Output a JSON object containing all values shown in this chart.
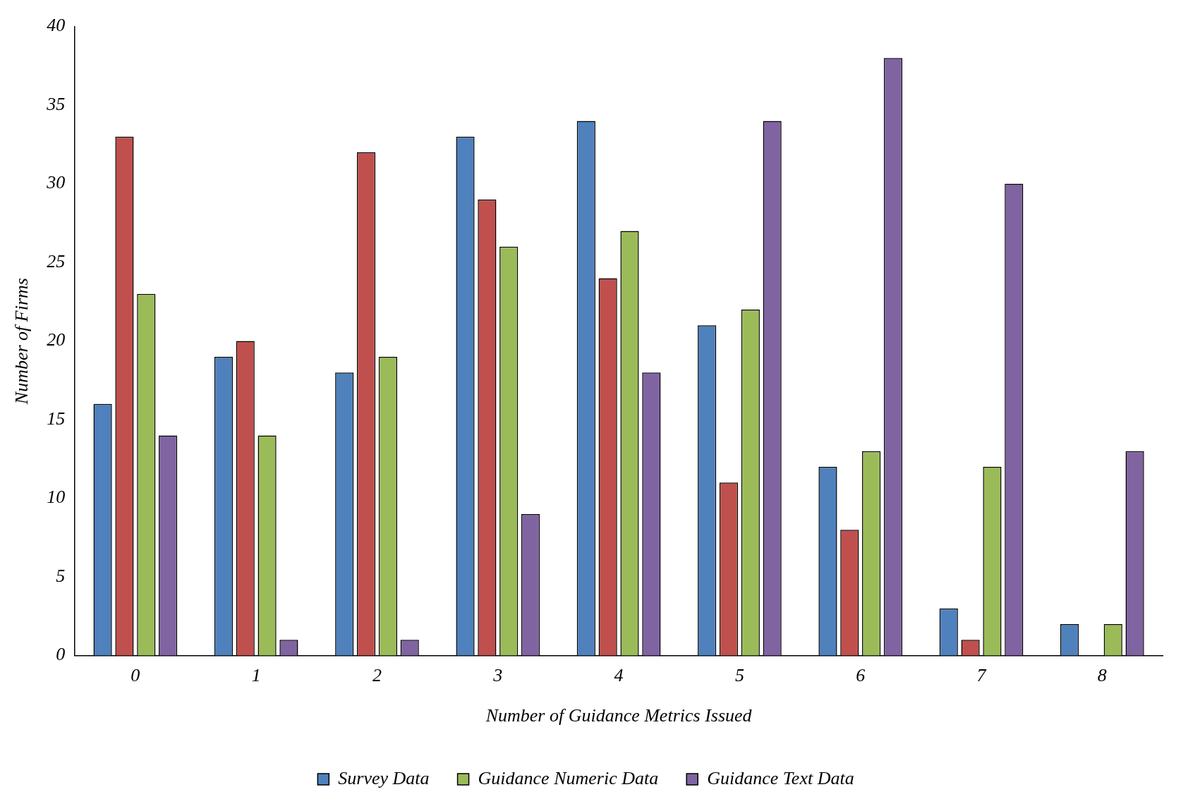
{
  "chart_data": {
    "type": "bar",
    "xlabel": "Number of Guidance Metrics Issued",
    "ylabel": "Number of Firms",
    "categories": [
      "0",
      "1",
      "2",
      "3",
      "4",
      "5",
      "6",
      "7",
      "8"
    ],
    "series": [
      {
        "name": "Survey Data",
        "color": "#4f81bd",
        "values": [
          16,
          19,
          18,
          33,
          34,
          21,
          12,
          3,
          2
        ]
      },
      {
        "color": "#c0504d",
        "values": [
          33,
          20,
          32,
          29,
          24,
          11,
          8,
          1,
          0
        ]
      },
      {
        "name": "Guidance Numeric Data",
        "color": "#9bbb59",
        "values": [
          23,
          14,
          19,
          26,
          27,
          22,
          13,
          12,
          2
        ]
      },
      {
        "name": "Guidance Text Data",
        "color": "#8064a2",
        "values": [
          14,
          1,
          1,
          9,
          18,
          34,
          38,
          30,
          13
        ]
      }
    ],
    "ylim": [
      0,
      40
    ],
    "yticks": [
      0,
      5,
      10,
      15,
      20,
      25,
      30,
      35,
      40
    ],
    "grid": false,
    "legend": "bottom"
  }
}
